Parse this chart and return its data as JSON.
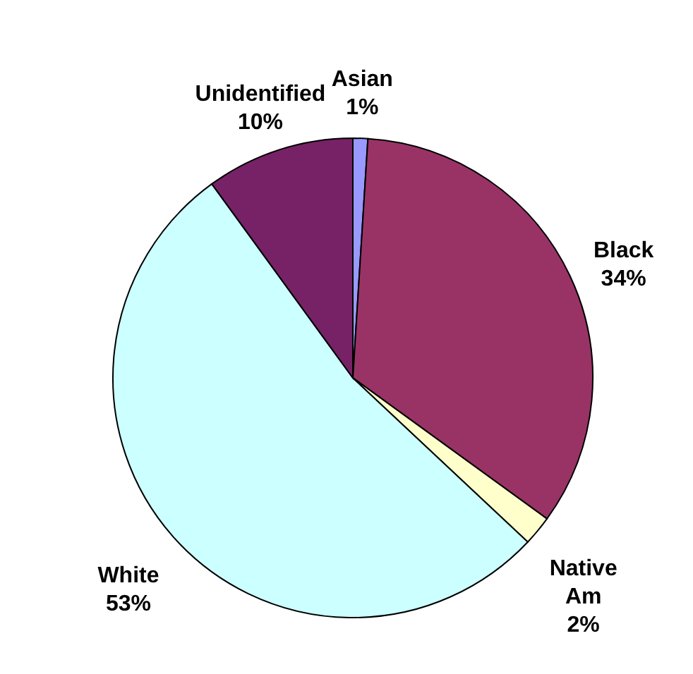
{
  "chart_data": {
    "type": "pie",
    "categories": [
      "Asian",
      "Black",
      "Native Am",
      "White",
      "Unidentified"
    ],
    "values": [
      1,
      34,
      2,
      53,
      10
    ],
    "value_labels": [
      "1%",
      "34%",
      "2%",
      "53%",
      "10%"
    ],
    "colors": [
      "#9999ff",
      "#993366",
      "#ffffcc",
      "#ccffff",
      "#772266"
    ]
  }
}
